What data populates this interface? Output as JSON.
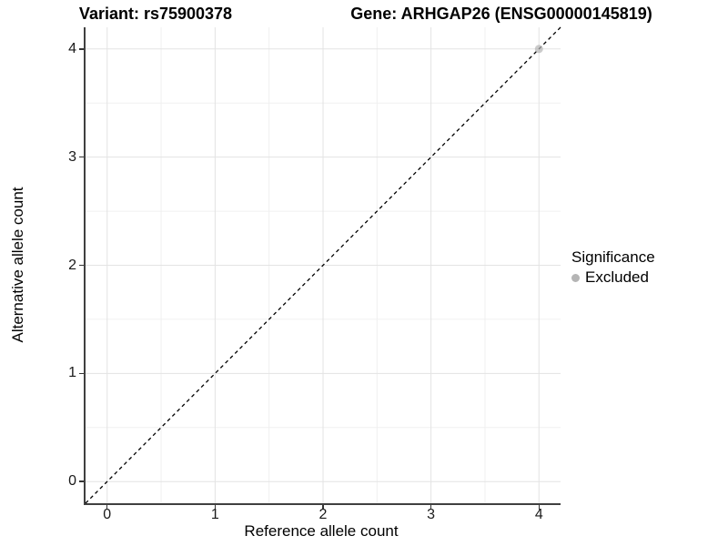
{
  "titles": {
    "left": "Variant: rs75900378",
    "right": "Gene: ARHGAP26 (ENSG00000145819)"
  },
  "chart_data": {
    "type": "scatter",
    "xlabel": "Reference allele count",
    "ylabel": "Alternative allele count",
    "xlim": [
      -0.2,
      4.2
    ],
    "ylim": [
      -0.2,
      4.2
    ],
    "x_ticks": [
      0,
      1,
      2,
      3,
      4
    ],
    "y_ticks": [
      0,
      1,
      2,
      3,
      4
    ],
    "x_minor_ticks": [
      0.5,
      1.5,
      2.5,
      3.5
    ],
    "y_minor_ticks": [
      0.5,
      1.5,
      2.5,
      3.5
    ],
    "grid": "major+minor",
    "identity_line": {
      "type": "dashed",
      "slope": 1,
      "intercept": 0,
      "color": "#000000"
    },
    "series": [
      {
        "name": "Excluded",
        "color": "#b5b5b5",
        "opacity": 0.7,
        "points": [
          [
            4,
            4
          ]
        ]
      }
    ],
    "legend": {
      "title": "Significance",
      "position": "right",
      "items": [
        {
          "label": "Excluded",
          "color": "#b5b5b5"
        }
      ]
    }
  },
  "colors": {
    "grid_major": "#e3e3e3",
    "grid_minor": "#f0f0f0",
    "axis_line": "#404040",
    "tick_mark": "#333333",
    "tick_label": "#1a1a1a"
  }
}
